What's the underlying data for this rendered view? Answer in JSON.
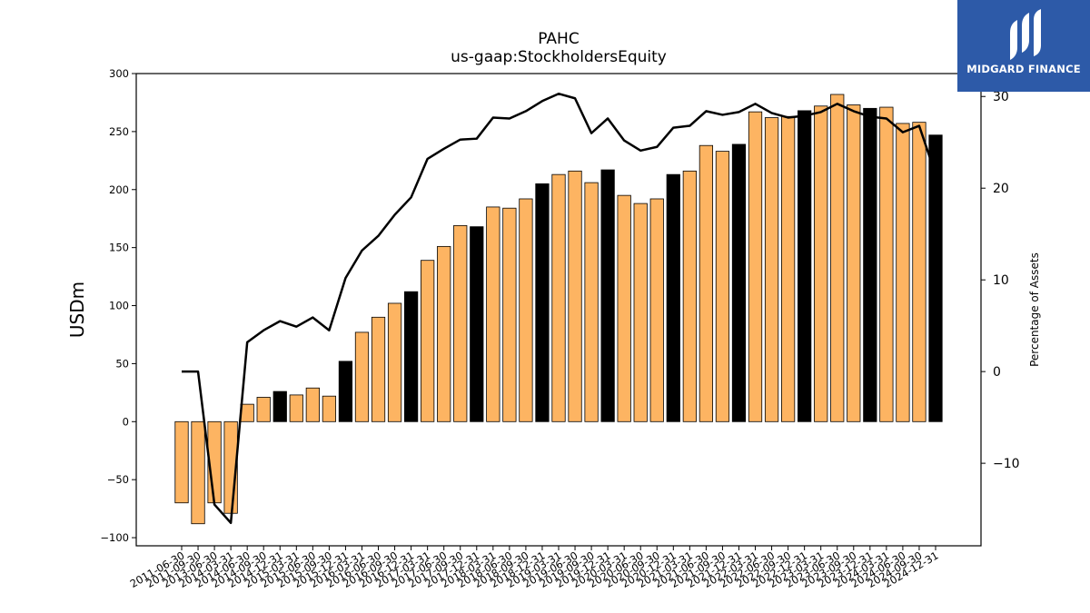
{
  "chart_data": {
    "type": "bar",
    "title": "PAHC",
    "subtitle": "us-gaap:StockholdersEquity",
    "xlabel": "",
    "ylabel": "USDm",
    "y2label": "Percentage of Assets",
    "ylim": [
      -107,
      300
    ],
    "y2lim": [
      -19,
      32.5
    ],
    "yticks": [
      -100,
      -50,
      0,
      50,
      100,
      150,
      200,
      250,
      300
    ],
    "y2ticks": [
      -10,
      0,
      10,
      20,
      30
    ],
    "categories": [
      "2011-06-30",
      "2011-09-30",
      "2013-06-30",
      "2014-03-31",
      "2014-06-30",
      "2014-09-30",
      "2014-12-31",
      "2015-03-31",
      "2015-06-30",
      "2015-09-30",
      "2015-12-31",
      "2016-03-31",
      "2016-06-30",
      "2016-09-30",
      "2016-12-31",
      "2017-03-31",
      "2017-06-30",
      "2017-09-30",
      "2017-12-31",
      "2018-03-31",
      "2018-06-30",
      "2018-09-30",
      "2018-12-31",
      "2019-03-31",
      "2019-06-30",
      "2019-09-30",
      "2019-12-31",
      "2020-03-31",
      "2020-06-30",
      "2020-09-30",
      "2020-12-31",
      "2021-03-31",
      "2021-06-30",
      "2021-09-30",
      "2021-12-31",
      "2022-03-31",
      "2022-06-30",
      "2022-09-30",
      "2022-12-31",
      "2023-03-31",
      "2023-06-30",
      "2023-09-30",
      "2023-12-31",
      "2024-03-31",
      "2024-06-30",
      "2024-09-30",
      "2024-12-31"
    ],
    "xtick_labels": [
      "2011-06-30",
      "2011-09-30",
      "2013-06-30",
      "2014-03-31",
      "2014-06-30",
      "2014-09-30",
      "2014-12-31",
      "2015-03-31",
      "2015-06-30",
      "2015-09-30",
      "2015-12-31",
      "2016-03-31",
      "2016-06-30",
      "2016-09-30",
      "2016-12-31",
      "2017-03-31",
      "2017-06-30",
      "2017-09-30",
      "2017-12-31",
      "2018-03-31",
      "2018-06-30",
      "2018-09-30",
      "2018-12-31",
      "2019-03-31",
      "2019-06-30",
      "2019-09-30",
      "2019-12-31",
      "2020-03-31",
      "2020-06-30",
      "2020-09-30",
      "2020-12-31",
      "2021-03-31",
      "2021-06-30",
      "2021-09-30",
      "2021-12-31",
      "2022-03-31",
      "2022-06-30",
      "2022-09-30",
      "2022-12-31",
      "2023-03-31",
      "2023-06-30",
      "2023-09-30",
      "2023-12-31",
      "2024-03-31",
      "2024-06-30",
      "2024-09-30",
      "2024-12-31"
    ],
    "series": [
      {
        "values": [
          -70,
          -88,
          -70,
          -79,
          15,
          21,
          26,
          23,
          29,
          22,
          52,
          77,
          90,
          102,
          112,
          139,
          151,
          169,
          168,
          185,
          184,
          192,
          205,
          213,
          216,
          206,
          217,
          195,
          188,
          192,
          213,
          216,
          238,
          233,
          239,
          267,
          262,
          263,
          268,
          272,
          282,
          273,
          270,
          271,
          257,
          258,
          247
        ],
        "highlight": [
          false,
          false,
          false,
          false,
          false,
          false,
          true,
          false,
          false,
          false,
          true,
          false,
          false,
          false,
          true,
          false,
          false,
          false,
          true,
          false,
          false,
          false,
          true,
          false,
          false,
          false,
          true,
          false,
          false,
          false,
          true,
          false,
          false,
          false,
          true,
          false,
          false,
          false,
          true,
          false,
          false,
          false,
          true,
          false,
          false,
          false,
          true
        ]
      },
      {
        "values": [
          0,
          0,
          -14.5,
          -16.5,
          3.2,
          4.5,
          5.5,
          4.9,
          5.9,
          4.5,
          10.2,
          13.2,
          14.8,
          17.1,
          19,
          23.2,
          24.3,
          25.3,
          25.4,
          27.7,
          27.6,
          28.4,
          29.5,
          30.3,
          29.8,
          26,
          27.6,
          25.2,
          24.1,
          24.5,
          26.6,
          26.8,
          28.4,
          28,
          28.3,
          29.2,
          28.2,
          27.7,
          27.9,
          28.3,
          29.2,
          28.4,
          27.8,
          27.6,
          26.1,
          26.8,
          21.5
        ]
      }
    ],
    "colors": {
      "bar": "#fdb462",
      "bar_highlight": "#000000",
      "line": "#000000"
    },
    "grid": false,
    "legend": "none"
  },
  "logo": {
    "text": "MIDGARD FINANCE",
    "bg": "#2d5aa8"
  }
}
